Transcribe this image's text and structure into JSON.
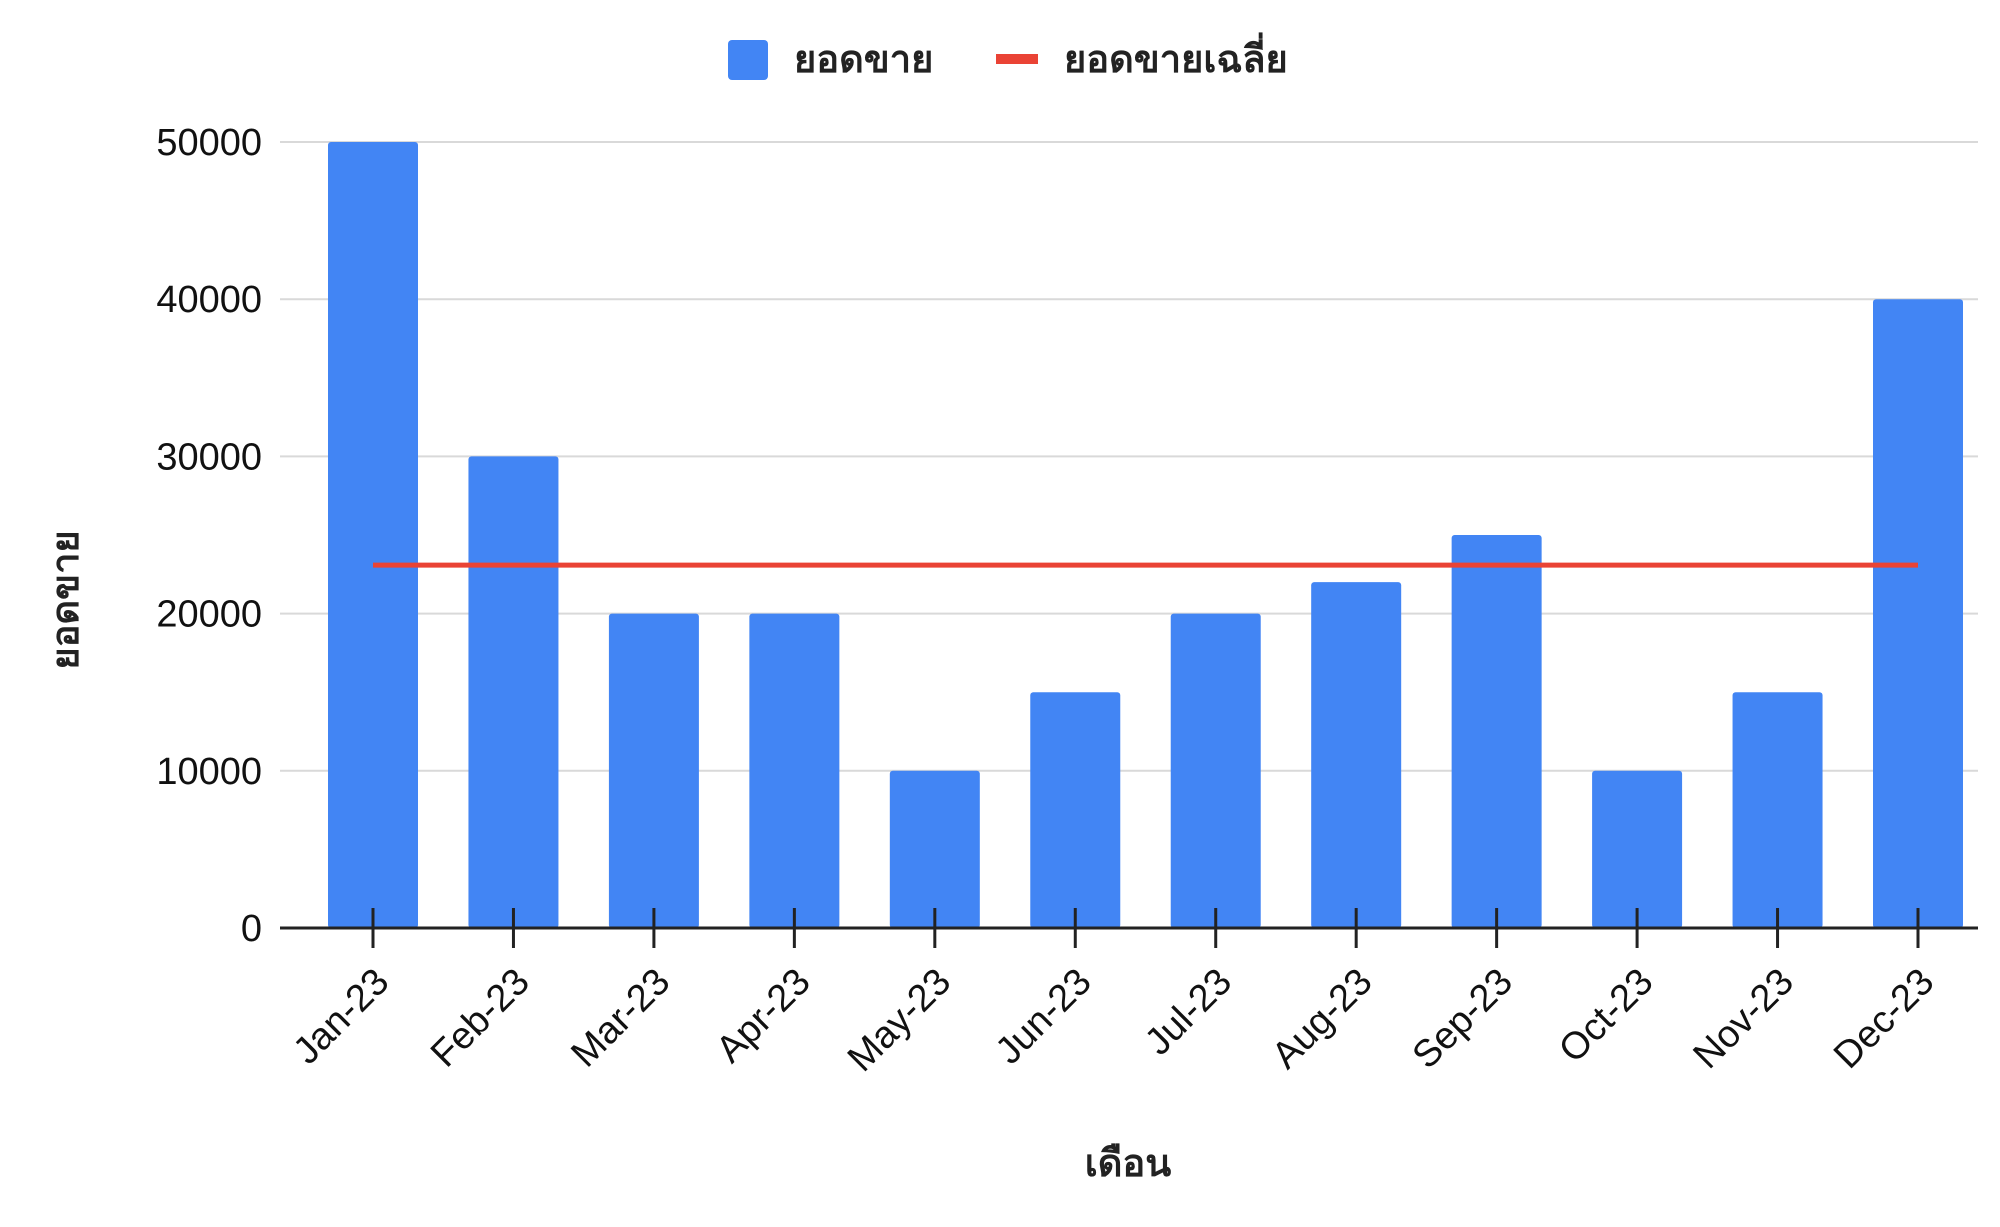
{
  "chart_data": {
    "type": "bar",
    "categories": [
      "Jan-23",
      "Feb-23",
      "Mar-23",
      "Apr-23",
      "May-23",
      "Jun-23",
      "Jul-23",
      "Aug-23",
      "Sep-23",
      "Oct-23",
      "Nov-23",
      "Dec-23"
    ],
    "series": [
      {
        "name": "ยอดขาย",
        "type": "bar",
        "color": "#4285F4",
        "values": [
          50000,
          30000,
          20000,
          20000,
          10000,
          15000,
          20000,
          22000,
          25000,
          10000,
          15000,
          40000
        ]
      },
      {
        "name": "ยอดขายเฉลี่ย",
        "type": "line",
        "color": "#EA4335",
        "values": [
          23083,
          23083,
          23083,
          23083,
          23083,
          23083,
          23083,
          23083,
          23083,
          23083,
          23083,
          23083
        ]
      }
    ],
    "xlabel": "เดือน",
    "ylabel": "ยอดขาย",
    "ylim": [
      0,
      50000
    ],
    "yticks": [
      0,
      10000,
      20000,
      30000,
      40000,
      50000
    ],
    "grid": true,
    "legend_position": "top-center",
    "gridline_color": "#d9d9d9",
    "axis_color": "#222222"
  }
}
